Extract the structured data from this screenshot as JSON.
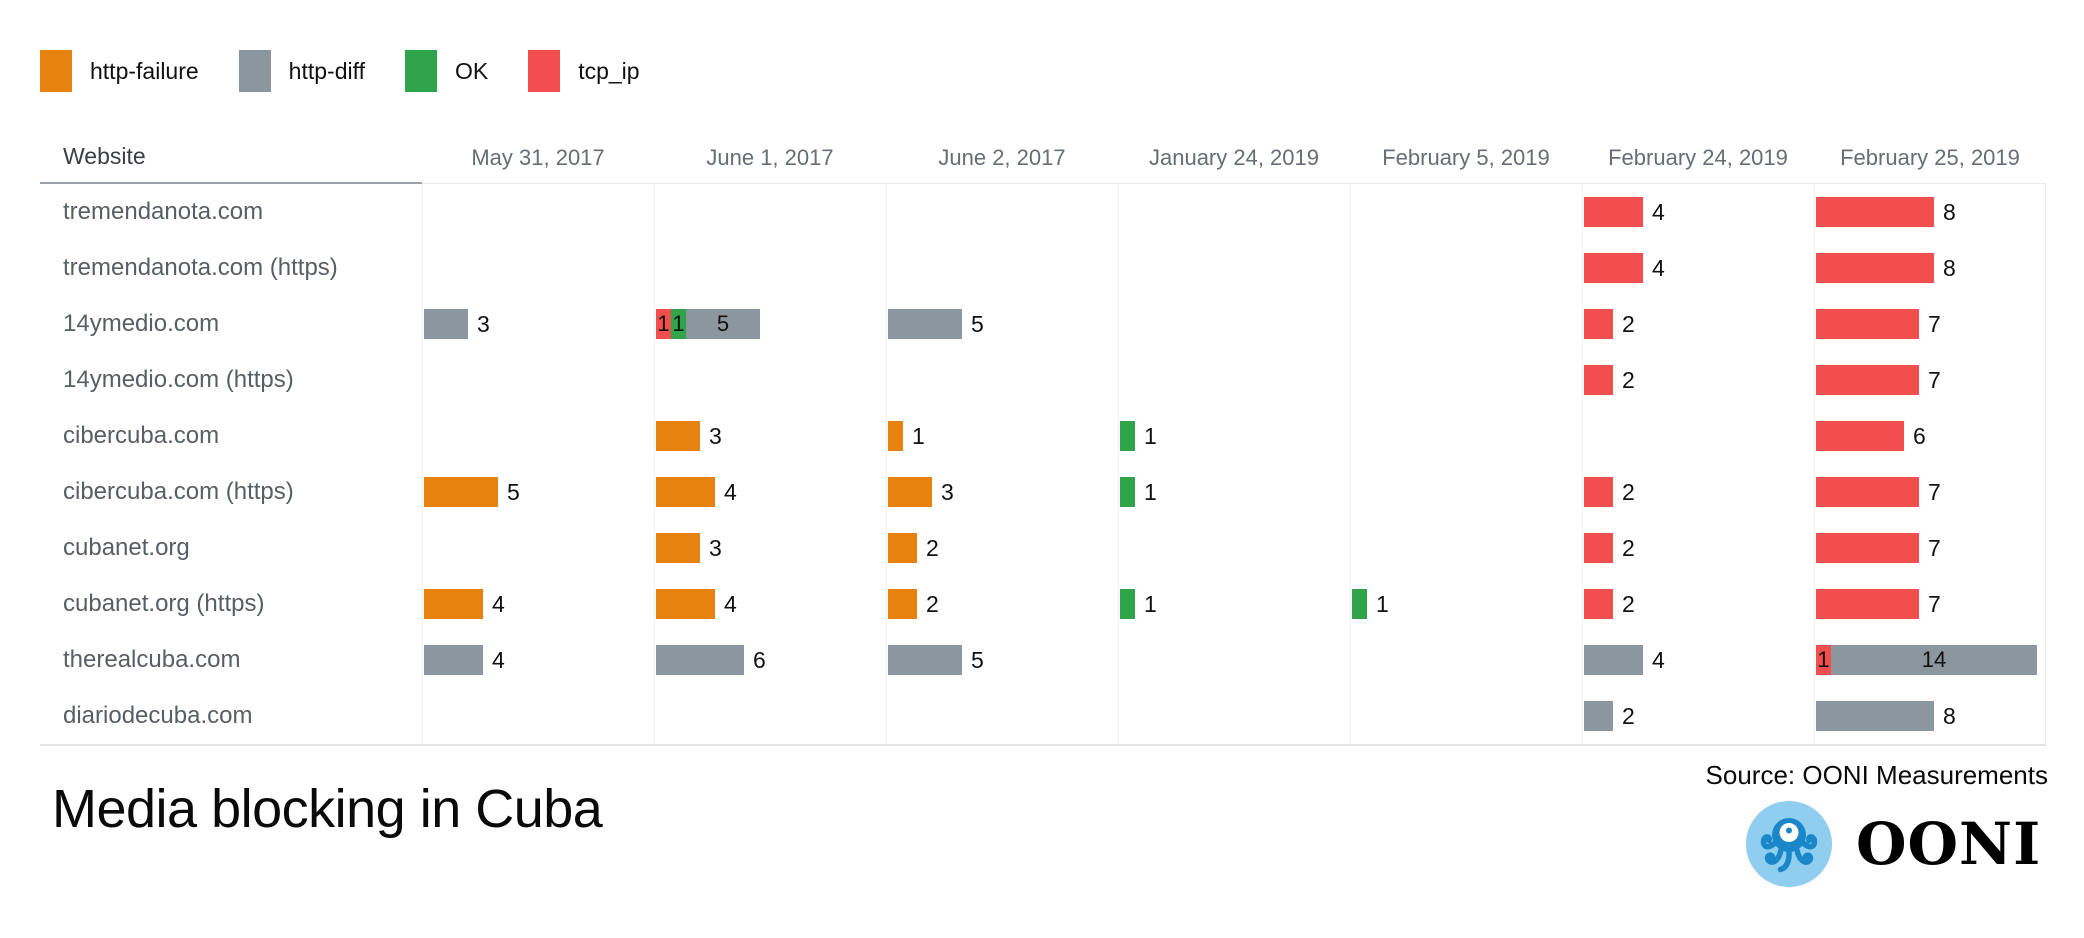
{
  "legend": {
    "items": [
      {
        "label": "http-failure",
        "color": "#E8820E"
      },
      {
        "label": "http-diff",
        "color": "#8C969E"
      },
      {
        "label": "OK",
        "color": "#2FA44B"
      },
      {
        "label": "tcp_ip",
        "color": "#F24E4E"
      }
    ]
  },
  "table": {
    "website_header": "Website",
    "columns": [
      "May 31, 2017",
      "June 1, 2017",
      "June 2, 2017",
      "January 24, 2019",
      "February 5, 2019",
      "February 24, 2019",
      "February 25, 2019"
    ]
  },
  "footer": {
    "title": "Media blocking in Cuba",
    "source": "Source: OONI Measurements",
    "logo_text": "OONI",
    "logo_icon": "octopus-icon",
    "logo_colors": {
      "circle": "#8FCEEF",
      "octopus": "#1987C8"
    }
  },
  "chart_data": {
    "type": "bar",
    "orientation": "horizontal",
    "stacked": true,
    "title": "Media blocking in Cuba",
    "source": "Source: OONI Measurements",
    "legend_position": "top",
    "grid": "vertical-column-separators",
    "categories": [
      "May 31, 2017",
      "June 1, 2017",
      "June 2, 2017",
      "January 24, 2019",
      "February 5, 2019",
      "February 24, 2019",
      "February 25, 2019"
    ],
    "status_colors": {
      "http-failure": "#E8820E",
      "http-diff": "#8C969E",
      "OK": "#2FA44B",
      "tcp_ip": "#F24E4E"
    },
    "rows": [
      {
        "website": "tremendanota.com",
        "cells": [
          [],
          [],
          [],
          [],
          [],
          [
            {
              "status": "tcp_ip",
              "count": 4
            }
          ],
          [
            {
              "status": "tcp_ip",
              "count": 8
            }
          ]
        ]
      },
      {
        "website": "tremendanota.com (https)",
        "cells": [
          [],
          [],
          [],
          [],
          [],
          [
            {
              "status": "tcp_ip",
              "count": 4
            }
          ],
          [
            {
              "status": "tcp_ip",
              "count": 8
            }
          ]
        ]
      },
      {
        "website": "14ymedio.com",
        "cells": [
          [
            {
              "status": "http-diff",
              "count": 3
            }
          ],
          [
            {
              "status": "tcp_ip",
              "count": 1
            },
            {
              "status": "OK",
              "count": 1
            },
            {
              "status": "http-diff",
              "count": 5
            }
          ],
          [
            {
              "status": "http-diff",
              "count": 5
            }
          ],
          [],
          [],
          [
            {
              "status": "tcp_ip",
              "count": 2
            }
          ],
          [
            {
              "status": "tcp_ip",
              "count": 7
            }
          ]
        ]
      },
      {
        "website": "14ymedio.com (https)",
        "cells": [
          [],
          [],
          [],
          [],
          [],
          [
            {
              "status": "tcp_ip",
              "count": 2
            }
          ],
          [
            {
              "status": "tcp_ip",
              "count": 7
            }
          ]
        ]
      },
      {
        "website": "cibercuba.com",
        "cells": [
          [],
          [
            {
              "status": "http-failure",
              "count": 3
            }
          ],
          [
            {
              "status": "http-failure",
              "count": 1
            }
          ],
          [
            {
              "status": "OK",
              "count": 1
            }
          ],
          [],
          [],
          [
            {
              "status": "tcp_ip",
              "count": 6
            }
          ]
        ]
      },
      {
        "website": "cibercuba.com (https)",
        "cells": [
          [
            {
              "status": "http-failure",
              "count": 5
            }
          ],
          [
            {
              "status": "http-failure",
              "count": 4
            }
          ],
          [
            {
              "status": "http-failure",
              "count": 3
            }
          ],
          [
            {
              "status": "OK",
              "count": 1
            }
          ],
          [],
          [
            {
              "status": "tcp_ip",
              "count": 2
            }
          ],
          [
            {
              "status": "tcp_ip",
              "count": 7
            }
          ]
        ]
      },
      {
        "website": "cubanet.org",
        "cells": [
          [],
          [
            {
              "status": "http-failure",
              "count": 3
            }
          ],
          [
            {
              "status": "http-failure",
              "count": 2
            }
          ],
          [],
          [],
          [
            {
              "status": "tcp_ip",
              "count": 2
            }
          ],
          [
            {
              "status": "tcp_ip",
              "count": 7
            }
          ]
        ]
      },
      {
        "website": "cubanet.org (https)",
        "cells": [
          [
            {
              "status": "http-failure",
              "count": 4
            }
          ],
          [
            {
              "status": "http-failure",
              "count": 4
            }
          ],
          [
            {
              "status": "http-failure",
              "count": 2
            }
          ],
          [
            {
              "status": "OK",
              "count": 1
            }
          ],
          [
            {
              "status": "OK",
              "count": 1
            }
          ],
          [
            {
              "status": "tcp_ip",
              "count": 2
            }
          ],
          [
            {
              "status": "tcp_ip",
              "count": 7
            }
          ]
        ]
      },
      {
        "website": "therealcuba.com",
        "cells": [
          [
            {
              "status": "http-diff",
              "count": 4
            }
          ],
          [
            {
              "status": "http-diff",
              "count": 6
            }
          ],
          [
            {
              "status": "http-diff",
              "count": 5
            }
          ],
          [],
          [],
          [
            {
              "status": "http-diff",
              "count": 4
            }
          ],
          [
            {
              "status": "tcp_ip",
              "count": 1
            },
            {
              "status": "http-diff",
              "count": 14
            }
          ]
        ]
      },
      {
        "website": "diariodecuba.com",
        "cells": [
          [],
          [],
          [],
          [],
          [],
          [
            {
              "status": "http-diff",
              "count": 2
            }
          ],
          [
            {
              "status": "http-diff",
              "count": 8
            }
          ]
        ]
      }
    ]
  }
}
